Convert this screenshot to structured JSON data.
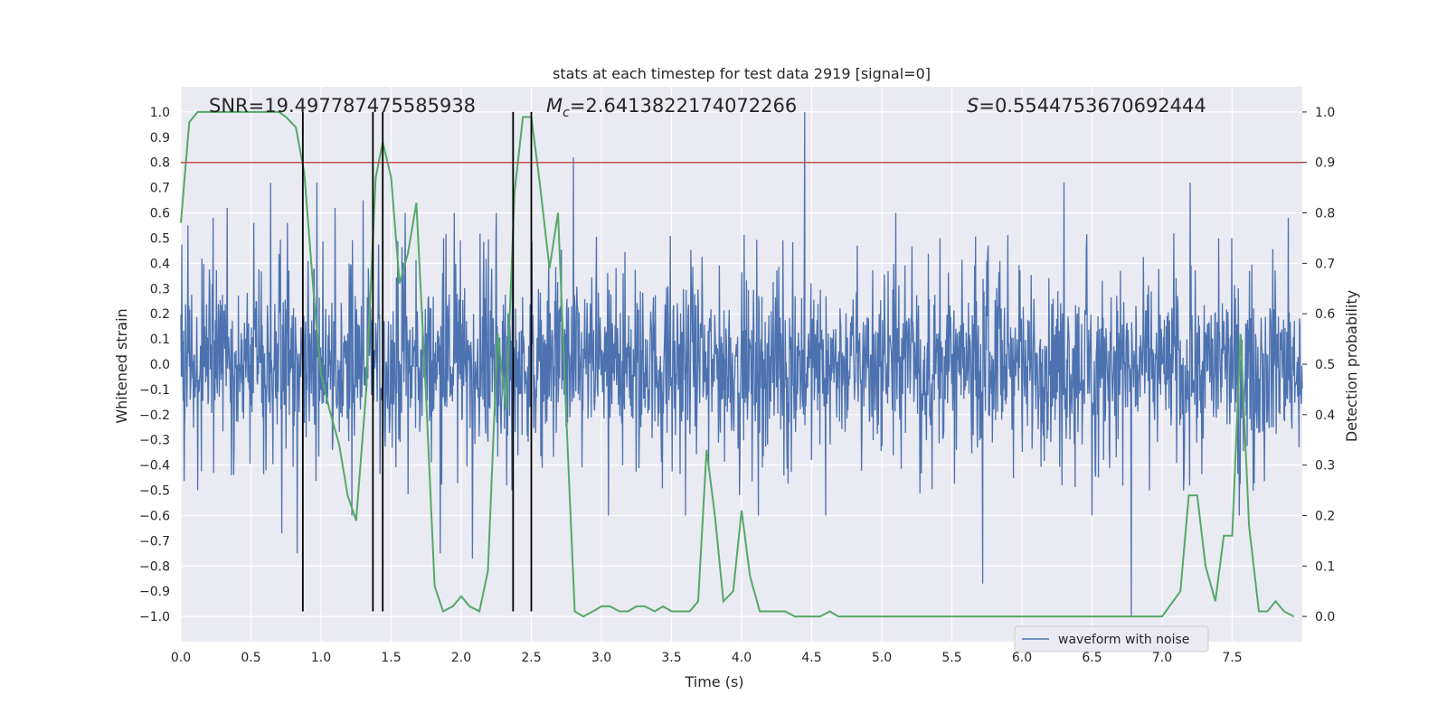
{
  "chart_data": {
    "type": "line",
    "title": "stats at each timestep for test data 2919 [signal=0]",
    "xlabel": "Time (s)",
    "ylabel": "Whitened strain",
    "ylabel_right": "Detection probability",
    "xlim": [
      0,
      8
    ],
    "ylim": [
      -1.1,
      1.1
    ],
    "ylim_right": [
      -0.05,
      1.05
    ],
    "x_ticks": [
      0.0,
      0.5,
      1.0,
      1.5,
      2.0,
      2.5,
      3.0,
      3.5,
      4.0,
      4.5,
      5.0,
      5.5,
      6.0,
      6.5,
      7.0,
      7.5
    ],
    "x_tick_labels": [
      "0.0",
      "0.5",
      "1.0",
      "1.5",
      "2.0",
      "2.5",
      "3.0",
      "3.5",
      "4.0",
      "4.5",
      "5.0",
      "5.5",
      "6.0",
      "6.5",
      "7.0",
      "7.5"
    ],
    "y_ticks": [
      1.0,
      0.9,
      0.8,
      0.7,
      0.6,
      0.5,
      0.4,
      0.3,
      0.2,
      0.1,
      0.0,
      -0.1,
      -0.2,
      -0.3,
      -0.4,
      -0.5,
      -0.6,
      -0.7,
      -0.8,
      -0.9,
      -1.0
    ],
    "y_tick_labels": [
      "1.0",
      "0.9",
      "0.8",
      "0.7",
      "0.6",
      "0.5",
      "0.4",
      "0.3",
      "0.2",
      "0.1",
      "0.0",
      "−0.1",
      "−0.2",
      "−0.3",
      "−0.4",
      "−0.5",
      "−0.6",
      "−0.7",
      "−0.8",
      "−0.9",
      "−1.0"
    ],
    "y_ticks_right": [
      1.0,
      0.9,
      0.8,
      0.7,
      0.6,
      0.5,
      0.4,
      0.3,
      0.2,
      0.1,
      0.0
    ],
    "y_tick_labels_right": [
      "1.0",
      "0.9",
      "0.8",
      "0.7",
      "0.6",
      "0.5",
      "0.4",
      "0.3",
      "0.2",
      "0.1",
      "0.0"
    ],
    "annotations": {
      "snr": "SNR=19.497787475585938",
      "mc_symbol": "M",
      "mc_sub": "c",
      "mc_value": "=2.6413822174072266",
      "s_symbol": "S",
      "s_value": "=0.5544753670692444"
    },
    "threshold": {
      "value": 0.8,
      "color": "#c44e52"
    },
    "vertical_lines": [
      0.87,
      1.37,
      1.44,
      2.37,
      2.5
    ],
    "noise_series": {
      "name": "waveform with noise",
      "color": "#4c72b0",
      "typical_amplitude": 0.4,
      "spikes": [
        [
          0.05,
          0.55
        ],
        [
          0.12,
          -0.5
        ],
        [
          0.23,
          0.58
        ],
        [
          0.33,
          0.62
        ],
        [
          0.52,
          0.56
        ],
        [
          0.64,
          0.72
        ],
        [
          0.72,
          -0.67
        ],
        [
          0.76,
          0.56
        ],
        [
          0.83,
          -0.75
        ],
        [
          0.97,
          0.72
        ],
        [
          1.1,
          0.62
        ],
        [
          1.22,
          -0.6
        ],
        [
          1.3,
          0.65
        ],
        [
          1.6,
          0.6
        ],
        [
          1.85,
          -0.75
        ],
        [
          1.95,
          0.6
        ],
        [
          2.08,
          -0.77
        ],
        [
          2.25,
          0.6
        ],
        [
          2.8,
          0.82
        ],
        [
          3.05,
          -0.6
        ],
        [
          3.6,
          -0.6
        ],
        [
          4.12,
          -0.6
        ],
        [
          4.45,
          1.0
        ],
        [
          4.6,
          -0.6
        ],
        [
          5.1,
          0.6
        ],
        [
          5.72,
          -0.87
        ],
        [
          6.3,
          0.72
        ],
        [
          6.5,
          -0.6
        ],
        [
          6.78,
          -1.0
        ],
        [
          7.2,
          0.72
        ],
        [
          7.55,
          -0.6
        ],
        [
          7.9,
          0.58
        ]
      ]
    },
    "probability_series": {
      "name": "Detection probability",
      "color": "#55a868",
      "x": [
        0.0,
        0.06,
        0.12,
        0.2,
        0.4,
        0.6,
        0.7,
        0.75,
        0.82,
        0.88,
        0.95,
        1.0,
        1.06,
        1.13,
        1.19,
        1.25,
        1.32,
        1.39,
        1.44,
        1.5,
        1.56,
        1.62,
        1.68,
        1.75,
        1.81,
        1.87,
        1.94,
        2.0,
        2.06,
        2.13,
        2.19,
        2.26,
        2.32,
        2.38,
        2.44,
        2.5,
        2.56,
        2.63,
        2.69,
        2.75,
        2.81,
        2.87,
        2.94,
        3.0,
        3.06,
        3.13,
        3.19,
        3.25,
        3.31,
        3.38,
        3.44,
        3.5,
        3.56,
        3.63,
        3.69,
        3.75,
        3.81,
        3.87,
        3.94,
        4.0,
        4.06,
        4.13,
        4.19,
        4.25,
        4.31,
        4.38,
        4.44,
        4.5,
        4.56,
        4.63,
        4.69,
        4.75,
        4.81,
        4.87,
        4.94,
        5.0,
        5.2,
        5.4,
        5.6,
        5.8,
        6.0,
        6.2,
        6.4,
        6.6,
        6.8,
        7.0,
        7.13,
        7.19,
        7.25,
        7.31,
        7.38,
        7.44,
        7.5,
        7.56,
        7.62,
        7.69,
        7.75,
        7.81,
        7.87,
        7.94
      ],
      "y": [
        0.78,
        0.98,
        1.0,
        1.0,
        1.0,
        1.0,
        1.0,
        0.99,
        0.97,
        0.88,
        0.63,
        0.48,
        0.41,
        0.34,
        0.24,
        0.19,
        0.44,
        0.87,
        0.94,
        0.87,
        0.66,
        0.72,
        0.82,
        0.43,
        0.06,
        0.01,
        0.02,
        0.04,
        0.02,
        0.01,
        0.09,
        0.56,
        0.41,
        0.84,
        0.99,
        0.99,
        0.86,
        0.69,
        0.8,
        0.39,
        0.01,
        0.0,
        0.01,
        0.02,
        0.02,
        0.01,
        0.01,
        0.02,
        0.02,
        0.01,
        0.02,
        0.01,
        0.01,
        0.01,
        0.03,
        0.33,
        0.2,
        0.03,
        0.05,
        0.21,
        0.08,
        0.01,
        0.01,
        0.01,
        0.01,
        0.0,
        0.0,
        0.0,
        0.0,
        0.01,
        0.0,
        0.0,
        0.0,
        0.0,
        0.0,
        0.0,
        0.0,
        0.0,
        0.0,
        0.0,
        0.0,
        0.0,
        0.0,
        0.0,
        0.0,
        0.0,
        0.05,
        0.24,
        0.24,
        0.1,
        0.03,
        0.16,
        0.16,
        0.56,
        0.18,
        0.01,
        0.01,
        0.03,
        0.01,
        0.0
      ]
    },
    "legend": {
      "placement": "bottom-right",
      "entries": [
        "waveform with noise"
      ]
    }
  }
}
